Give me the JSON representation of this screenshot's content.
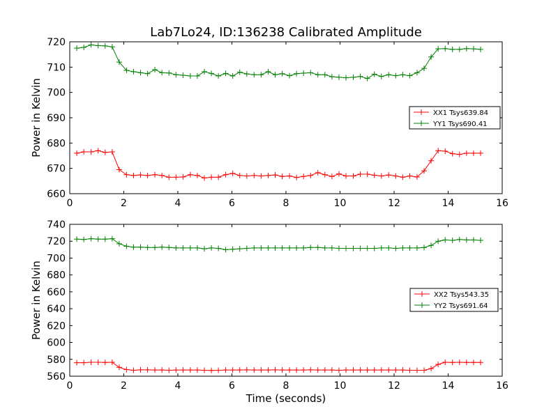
{
  "colors": {
    "xx": "#ff0000",
    "yy": "#008000",
    "axis": "#000000"
  },
  "chart_data": [
    {
      "type": "line",
      "title": "Lab7Lo24, ID:136238 Calibrated Amplitude",
      "xlabel": "",
      "ylabel": "Power in Kelvin",
      "xlim": [
        0,
        16
      ],
      "ylim": [
        660,
        720
      ],
      "xticks": [
        0,
        2,
        4,
        6,
        8,
        10,
        12,
        14,
        16
      ],
      "yticks": [
        660,
        670,
        680,
        690,
        700,
        710,
        720
      ],
      "grid": false,
      "legend_position": "center-right",
      "x": [
        0.26,
        0.52,
        0.79,
        1.05,
        1.31,
        1.57,
        1.83,
        2.1,
        2.36,
        2.62,
        2.88,
        3.15,
        3.41,
        3.67,
        3.93,
        4.19,
        4.46,
        4.72,
        4.98,
        5.24,
        5.5,
        5.77,
        6.03,
        6.29,
        6.55,
        6.82,
        7.08,
        7.34,
        7.6,
        7.86,
        8.13,
        8.39,
        8.65,
        8.91,
        9.18,
        9.44,
        9.7,
        9.96,
        10.22,
        10.49,
        10.75,
        11.01,
        11.27,
        11.53,
        11.8,
        12.06,
        12.32,
        12.58,
        12.85,
        13.11,
        13.37,
        13.63,
        13.89,
        14.16,
        14.42,
        14.68,
        14.94,
        15.2
      ],
      "series": [
        {
          "name": "XX1 Tsys639.84",
          "color": "#ff0000",
          "values": [
            676.0,
            676.5,
            676.5,
            677.0,
            676.3,
            676.5,
            669.5,
            667.5,
            667.2,
            667.4,
            667.2,
            667.5,
            667.2,
            666.5,
            666.5,
            666.6,
            667.5,
            667.2,
            666.2,
            666.5,
            666.5,
            667.5,
            668.0,
            667.2,
            667.0,
            667.2,
            667.0,
            667.2,
            667.4,
            666.8,
            667.0,
            666.4,
            666.8,
            667.2,
            668.3,
            667.5,
            666.8,
            667.8,
            667.0,
            667.0,
            667.7,
            667.7,
            667.3,
            667.0,
            667.4,
            667.0,
            666.5,
            667.0,
            666.6,
            669.0,
            673.0,
            677.0,
            676.8,
            675.8,
            675.5,
            676.0,
            676.0,
            676.0
          ]
        },
        {
          "name": "YY1 Tsys690.41",
          "color": "#008000",
          "values": [
            717.5,
            717.8,
            718.8,
            718.5,
            718.4,
            718.0,
            712.0,
            708.7,
            708.2,
            707.8,
            707.4,
            709.0,
            707.8,
            707.7,
            707.0,
            706.8,
            706.5,
            706.5,
            708.2,
            707.5,
            706.5,
            707.5,
            706.5,
            708.0,
            707.3,
            707.0,
            707.0,
            708.2,
            707.0,
            707.4,
            706.6,
            707.4,
            707.6,
            707.8,
            707.0,
            707.0,
            706.2,
            706.0,
            705.8,
            706.0,
            706.3,
            705.5,
            707.2,
            706.3,
            707.0,
            706.6,
            707.0,
            706.6,
            707.8,
            709.5,
            714.0,
            717.2,
            717.3,
            717.0,
            717.0,
            717.3,
            717.2,
            717.0
          ]
        }
      ]
    },
    {
      "type": "line",
      "title": "",
      "xlabel": "Time (seconds)",
      "ylabel": "Power in Kelvin",
      "xlim": [
        0,
        16
      ],
      "ylim": [
        560,
        740
      ],
      "xticks": [
        0,
        2,
        4,
        6,
        8,
        10,
        12,
        14,
        16
      ],
      "yticks": [
        560,
        580,
        600,
        620,
        640,
        660,
        680,
        700,
        720,
        740
      ],
      "grid": false,
      "legend_position": "center-right",
      "x": [
        0.26,
        0.52,
        0.79,
        1.05,
        1.31,
        1.57,
        1.83,
        2.1,
        2.36,
        2.62,
        2.88,
        3.15,
        3.41,
        3.67,
        3.93,
        4.19,
        4.46,
        4.72,
        4.98,
        5.24,
        5.5,
        5.77,
        6.03,
        6.29,
        6.55,
        6.82,
        7.08,
        7.34,
        7.6,
        7.86,
        8.13,
        8.39,
        8.65,
        8.91,
        9.18,
        9.44,
        9.7,
        9.96,
        10.22,
        10.49,
        10.75,
        11.01,
        11.27,
        11.53,
        11.8,
        12.06,
        12.32,
        12.58,
        12.85,
        13.11,
        13.37,
        13.63,
        13.89,
        14.16,
        14.42,
        14.68,
        14.94,
        15.2
      ],
      "series": [
        {
          "name": "XX2 Tsys543.35",
          "color": "#ff0000",
          "values": [
            576.0,
            576.0,
            576.5,
            576.5,
            576.3,
            576.5,
            570.5,
            567.8,
            567.0,
            567.5,
            567.5,
            567.3,
            567.3,
            567.0,
            567.3,
            567.3,
            567.3,
            567.3,
            567.0,
            566.8,
            567.0,
            567.3,
            567.3,
            567.3,
            567.5,
            567.3,
            567.3,
            567.3,
            567.5,
            567.3,
            567.3,
            567.3,
            567.3,
            567.5,
            567.3,
            567.3,
            567.3,
            567.0,
            567.3,
            567.3,
            567.3,
            567.3,
            567.3,
            567.3,
            567.3,
            567.3,
            567.3,
            567.0,
            567.0,
            567.0,
            569.0,
            574.0,
            576.5,
            576.3,
            576.5,
            576.3,
            576.3,
            576.3
          ]
        },
        {
          "name": "YY2 Tsys691.64",
          "color": "#008000",
          "values": [
            722.5,
            722.0,
            723.0,
            722.5,
            722.5,
            723.0,
            717.0,
            714.0,
            713.0,
            713.0,
            712.5,
            712.5,
            713.0,
            712.5,
            712.0,
            712.0,
            712.0,
            712.0,
            711.0,
            712.0,
            711.5,
            710.0,
            710.5,
            711.0,
            711.5,
            712.0,
            712.0,
            712.0,
            712.0,
            712.0,
            712.0,
            712.0,
            712.0,
            712.5,
            712.5,
            712.0,
            712.0,
            711.5,
            711.5,
            711.5,
            711.5,
            711.5,
            711.5,
            712.0,
            712.0,
            711.5,
            712.0,
            712.0,
            712.0,
            712.5,
            715.0,
            720.0,
            721.5,
            721.0,
            722.0,
            721.5,
            721.5,
            721.0
          ]
        }
      ]
    }
  ]
}
